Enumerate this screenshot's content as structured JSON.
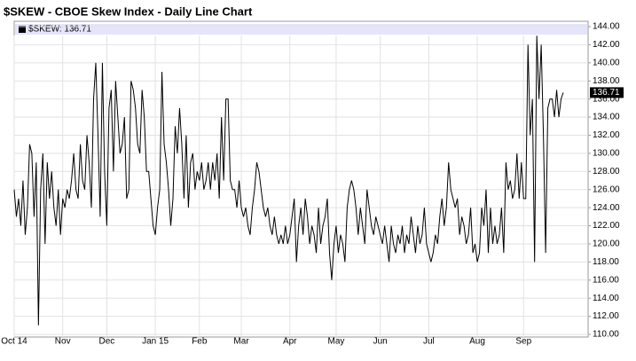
{
  "chart_data": {
    "type": "line",
    "title": "$SKEW - CBOE Skew Index - Daily Line Chart",
    "categories": [
      "Oct 14",
      null,
      null,
      null,
      null,
      null,
      null,
      null,
      null,
      null,
      null,
      null,
      null,
      null,
      null,
      null,
      null,
      null,
      null,
      null,
      null,
      null,
      "Nov",
      null,
      null,
      null,
      null,
      null,
      null,
      null,
      null,
      null,
      null,
      null,
      null,
      null,
      null,
      null,
      null,
      null,
      null,
      null,
      "Dec",
      null,
      null,
      null,
      null,
      null,
      null,
      null,
      null,
      null,
      null,
      null,
      null,
      null,
      null,
      null,
      null,
      null,
      null,
      null,
      null,
      null,
      "Jan 15",
      null,
      null,
      null,
      null,
      null,
      null,
      null,
      null,
      null,
      null,
      null,
      null,
      null,
      null,
      null,
      null,
      null,
      null,
      null,
      "Feb",
      null,
      null,
      null,
      null,
      null,
      null,
      null,
      null,
      null,
      null,
      null,
      null,
      null,
      null,
      null,
      null,
      null,
      null,
      "Mar",
      null,
      null,
      null,
      null,
      null,
      null,
      null,
      null,
      null,
      null,
      null,
      null,
      null,
      null,
      null,
      null,
      null,
      null,
      null,
      null,
      null,
      "Apr",
      null,
      null,
      null,
      null,
      null,
      null,
      null,
      null,
      null,
      null,
      null,
      null,
      null,
      null,
      null,
      null,
      null,
      null,
      null,
      null,
      "May",
      null,
      null,
      null,
      null,
      null,
      null,
      null,
      null,
      null,
      null,
      null,
      null,
      null,
      null,
      null,
      null,
      null,
      null,
      null,
      "Jun",
      null,
      null,
      null,
      null,
      null,
      null,
      null,
      null,
      null,
      null,
      null,
      null,
      null,
      null,
      null,
      null,
      null,
      null,
      null,
      null,
      null,
      "Jul",
      null,
      null,
      null,
      null,
      null,
      null,
      null,
      null,
      null,
      null,
      null,
      null,
      null,
      null,
      null,
      null,
      null,
      null,
      null,
      null,
      null,
      "Aug",
      null,
      null,
      null,
      null,
      null,
      null,
      null,
      null,
      null,
      null,
      null,
      null,
      null,
      null,
      null,
      null,
      null,
      null,
      null,
      null,
      "Sep",
      null,
      null,
      null,
      null,
      null,
      null,
      null,
      null,
      null,
      null,
      null,
      null,
      null,
      null,
      null,
      null,
      null,
      null
    ],
    "series": [
      {
        "name": "$SKEW: 136.71",
        "color": "#000000",
        "values": [
          126,
          123,
          125,
          122,
          127,
          121,
          124,
          131,
          130,
          123,
          129,
          111,
          126,
          130,
          120,
          129,
          125,
          128,
          124,
          122,
          126,
          121,
          125,
          124,
          126,
          125,
          127,
          130,
          126,
          125,
          131,
          127,
          126,
          132,
          129,
          124,
          136,
          140,
          132,
          123,
          140,
          128,
          122,
          135,
          137,
          128,
          138,
          134,
          130,
          131,
          134,
          125,
          126,
          138,
          137,
          135,
          131,
          130,
          137,
          134,
          128,
          128,
          125,
          122,
          121,
          124,
          126,
          139,
          131,
          129,
          126,
          122,
          125,
          133,
          130,
          135,
          131,
          125,
          132,
          124,
          129,
          130,
          126,
          128,
          127,
          129,
          126,
          127,
          129,
          126,
          129,
          127,
          130,
          125,
          134,
          127,
          136,
          136,
          127,
          126,
          126,
          124,
          127,
          124,
          123,
          124,
          122,
          121,
          124,
          126,
          129,
          128,
          126,
          124,
          123,
          124,
          122,
          121,
          123,
          121,
          120,
          121,
          120,
          122,
          120,
          121,
          123,
          125,
          118,
          122,
          124,
          121,
          125,
          123,
          120,
          122,
          121,
          119,
          124,
          120,
          122,
          123,
          125,
          119,
          116,
          120,
          122,
          119,
          121,
          120,
          118,
          124,
          126,
          127,
          126,
          124,
          121,
          124,
          122,
          120,
          126,
          124,
          122,
          121,
          123,
          122,
          121,
          120,
          122,
          120,
          118,
          122,
          120,
          119,
          121,
          120,
          122,
          119,
          121,
          120,
          123,
          121,
          119,
          122,
          120,
          121,
          124,
          120,
          119,
          118,
          119,
          121,
          120,
          123,
          125,
          122,
          124,
          129,
          126,
          125,
          124,
          125,
          121,
          123,
          122,
          120,
          121,
          124,
          119,
          120,
          118,
          119,
          124,
          122,
          126,
          119,
          124,
          120,
          122,
          120,
          121,
          124,
          119,
          129,
          126,
          127,
          125,
          126,
          130,
          125,
          129,
          125,
          125,
          142,
          132,
          136,
          118,
          143,
          136,
          142,
          132,
          119,
          135,
          136,
          136,
          134,
          137,
          134,
          136,
          136.71
        ]
      }
    ],
    "last_label": "136.71",
    "ylim": [
      110,
      144
    ],
    "yticks": [
      {
        "value": 110,
        "label": "110.00"
      },
      {
        "value": 112,
        "label": "112.00"
      },
      {
        "value": 114,
        "label": "114.00"
      },
      {
        "value": 116,
        "label": "116.00"
      },
      {
        "value": 118,
        "label": "118.00"
      },
      {
        "value": 120,
        "label": "120.00"
      },
      {
        "value": 122,
        "label": "122.00"
      },
      {
        "value": 124,
        "label": "124.00"
      },
      {
        "value": 126,
        "label": "126.00"
      },
      {
        "value": 128,
        "label": "128.00"
      },
      {
        "value": 130,
        "label": "130.00"
      },
      {
        "value": 132,
        "label": "132.00"
      },
      {
        "value": 134,
        "label": "134.00"
      },
      {
        "value": 136,
        "label": "136.00"
      },
      {
        "value": 138,
        "label": "138.00"
      },
      {
        "value": 140,
        "label": "140.00"
      },
      {
        "value": 142,
        "label": "142.00"
      },
      {
        "value": 144,
        "label": "144.00"
      }
    ],
    "grid": true
  }
}
